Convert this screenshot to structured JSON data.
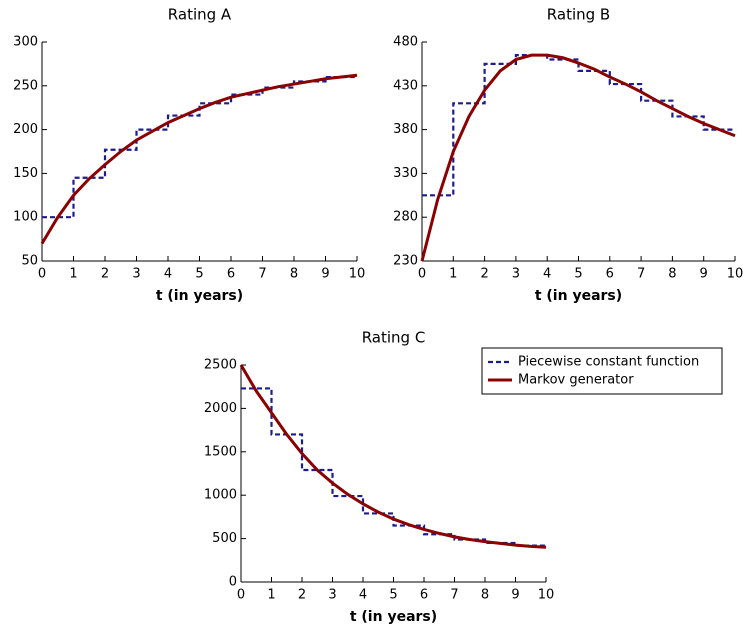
{
  "chart_data": [
    {
      "type": "line",
      "title": "Rating A",
      "xlabel": "t (in years)",
      "xlim": [
        0,
        10
      ],
      "xticks": [
        0,
        1,
        2,
        3,
        4,
        5,
        6,
        7,
        8,
        9,
        10
      ],
      "ylim": [
        50,
        300
      ],
      "yticks": [
        50,
        100,
        150,
        200,
        250,
        300
      ],
      "series": [
        {
          "color": "#1c1c8c",
          "dashed": true,
          "step": "post",
          "x": [
            0,
            1,
            2,
            3,
            4,
            5,
            6,
            7,
            8,
            9,
            10
          ],
          "values": [
            100,
            145,
            177,
            200,
            216,
            230,
            240,
            248,
            255,
            260,
            260
          ]
        },
        {
          "color": "#8b0000",
          "dashed": false,
          "x": [
            0,
            0.5,
            1,
            1.5,
            2,
            2.5,
            3,
            3.5,
            4,
            4.5,
            5,
            5.5,
            6,
            6.5,
            7,
            7.5,
            8,
            8.5,
            9,
            9.5,
            10
          ],
          "values": [
            70,
            100,
            125,
            144,
            160,
            175,
            188,
            198,
            208,
            216,
            224,
            231,
            237,
            241,
            245,
            249,
            252,
            255,
            258,
            260,
            262
          ]
        }
      ]
    },
    {
      "type": "line",
      "title": "Rating B",
      "xlabel": "t (in years)",
      "xlim": [
        0,
        10
      ],
      "xticks": [
        0,
        1,
        2,
        3,
        4,
        5,
        6,
        7,
        8,
        9,
        10
      ],
      "ylim": [
        230,
        480
      ],
      "yticks": [
        230,
        280,
        330,
        380,
        430,
        480
      ],
      "series": [
        {
          "color": "#1c1c8c",
          "dashed": true,
          "step": "post",
          "x": [
            0,
            1,
            2,
            3,
            4,
            5,
            6,
            7,
            8,
            9,
            10
          ],
          "values": [
            305,
            410,
            455,
            465,
            460,
            447,
            432,
            413,
            395,
            380,
            380
          ]
        },
        {
          "color": "#8b0000",
          "dashed": false,
          "x": [
            0,
            0.5,
            1,
            1.5,
            2,
            2.5,
            3,
            3.5,
            4,
            4.5,
            5,
            5.5,
            6,
            6.5,
            7,
            7.5,
            8,
            8.5,
            9,
            9.5,
            10
          ],
          "values": [
            230,
            300,
            355,
            395,
            425,
            447,
            460,
            465,
            465,
            462,
            456,
            449,
            440,
            432,
            423,
            413,
            404,
            395,
            387,
            380,
            373
          ]
        }
      ]
    },
    {
      "type": "line",
      "title": "Rating C",
      "xlabel": "t (in years)",
      "xlim": [
        0,
        10
      ],
      "xticks": [
        0,
        1,
        2,
        3,
        4,
        5,
        6,
        7,
        8,
        9,
        10
      ],
      "ylim": [
        0,
        2500
      ],
      "yticks": [
        0,
        500,
        1000,
        1500,
        2000,
        2500
      ],
      "legend": "upper right",
      "series": [
        {
          "name": "Piecewise constant function",
          "color": "#1c1c8c",
          "dashed": true,
          "step": "post",
          "x": [
            0,
            1,
            2,
            3,
            4,
            5,
            6,
            7,
            8,
            9,
            10
          ],
          "values": [
            2230,
            1700,
            1290,
            990,
            790,
            650,
            550,
            490,
            450,
            420,
            420
          ]
        },
        {
          "name": "Markov generator",
          "color": "#8b0000",
          "dashed": false,
          "x": [
            0,
            0.5,
            1,
            1.5,
            2,
            2.5,
            3,
            3.5,
            4,
            4.5,
            5,
            5.5,
            6,
            6.5,
            7,
            7.5,
            8,
            8.5,
            9,
            9.5,
            10
          ],
          "values": [
            2500,
            2200,
            1950,
            1700,
            1480,
            1290,
            1140,
            1010,
            900,
            805,
            725,
            660,
            605,
            560,
            520,
            490,
            465,
            445,
            425,
            410,
            400
          ]
        }
      ]
    }
  ]
}
